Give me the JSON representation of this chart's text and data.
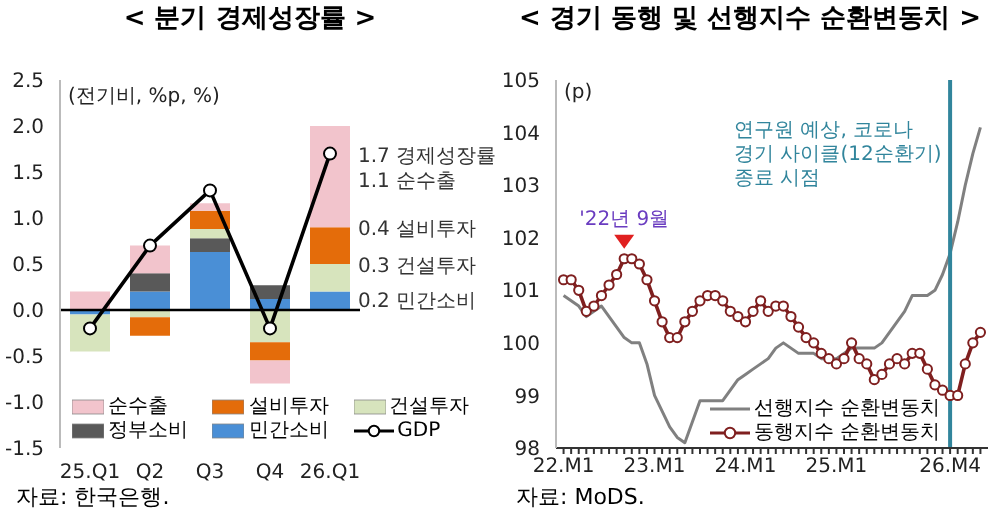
{
  "chart_data": [
    {
      "type": "bar",
      "title": "< 분기 경제성장률 >",
      "ylabel": "(전기비, %p, %)",
      "stacked": true,
      "categories": [
        "25.Q1",
        "Q2",
        "Q3",
        "Q4",
        "26.Q1"
      ],
      "series": [
        {
          "name": "민간소비",
          "color": "#4a8fd6",
          "values": [
            -0.05,
            0.2,
            0.63,
            0.12,
            0.2
          ]
        },
        {
          "name": "정부소비",
          "color": "#595959",
          "values": [
            0,
            0.2,
            0.15,
            0.15,
            0
          ]
        },
        {
          "name": "건설투자",
          "color": "#d7e4bd",
          "values": [
            -0.4,
            -0.08,
            0.1,
            -0.35,
            0.3
          ]
        },
        {
          "name": "설비투자",
          "color": "#e46c0a",
          "values": [
            0,
            -0.2,
            0.2,
            -0.2,
            0.4
          ]
        },
        {
          "name": "순수출",
          "color": "#f2c4cc",
          "values": [
            0.2,
            0.3,
            0.08,
            -0.25,
            1.1
          ]
        },
        {
          "name": "GDP",
          "type": "line",
          "color": "#000000",
          "marker": "circle",
          "values": [
            -0.2,
            0.7,
            1.3,
            -0.2,
            1.7
          ]
        }
      ],
      "ylim": [
        -1.5,
        2.5
      ],
      "yticks": [
        {
          "value": 2.5,
          "label": "2.5"
        },
        {
          "value": 2,
          "label": "2.0"
        },
        {
          "value": 1.5,
          "label": "1.5"
        },
        {
          "value": 1,
          "label": "1.0"
        },
        {
          "value": 0.5,
          "label": "0.5"
        },
        {
          "value": 0,
          "label": "0.0"
        },
        {
          "value": -0.5,
          "label": "-0.5"
        },
        {
          "value": -1,
          "label": "-1.0"
        },
        {
          "value": -1.5,
          "label": "-1.5"
        }
      ],
      "ref_lines": [
        {
          "axis": "y",
          "value": 0,
          "color": "#000000"
        }
      ],
      "legend": "bottom",
      "annotations": [
        {
          "text": "1.7 경제성장률",
          "x": "26.Q1",
          "y": 1.7
        },
        {
          "text": "1.1 순수출",
          "x": "26.Q1",
          "y": 1.42
        },
        {
          "text": "0.4 설비투자",
          "x": "26.Q1",
          "y": 0.9
        },
        {
          "text": "0.3 건설투자",
          "x": "26.Q1",
          "y": 0.5
        },
        {
          "text": "0.2 민간소비",
          "x": "26.Q1",
          "y": 0.12
        },
        "자료: 한국은행."
      ]
    },
    {
      "type": "line",
      "title": "< 경기 동행 및 선행지수 순환변동치 >",
      "ylabel": "(p)",
      "x": [
        "2022-01",
        "2022-02",
        "2022-03",
        "2022-04",
        "2022-05",
        "2022-06",
        "2022-07",
        "2022-08",
        "2022-09",
        "2022-10",
        "2022-11",
        "2022-12",
        "2023-01",
        "2023-02",
        "2023-03",
        "2023-04",
        "2023-05",
        "2023-06",
        "2023-07",
        "2023-08",
        "2023-09",
        "2023-10",
        "2023-11",
        "2023-12",
        "2024-01",
        "2024-02",
        "2024-03",
        "2024-04",
        "2024-05",
        "2024-06",
        "2024-07",
        "2024-08",
        "2024-09",
        "2024-10",
        "2024-11",
        "2024-12",
        "2025-01",
        "2025-02",
        "2025-03",
        "2025-04",
        "2025-05",
        "2025-06",
        "2025-07",
        "2025-08",
        "2025-09",
        "2025-10",
        "2025-11",
        "2025-12",
        "2026-01",
        "2026-02",
        "2026-03",
        "2026-04",
        "2026-05",
        "2026-06",
        "2026-07",
        "2026-08"
      ],
      "series": [
        {
          "name": "선행지수 순환변동치",
          "color": "#808080",
          "marker": "none",
          "values": [
            100.9,
            100.8,
            100.7,
            100.5,
            100.6,
            100.7,
            100.5,
            100.3,
            100.1,
            100.0,
            100.0,
            99.6,
            99.0,
            98.7,
            98.4,
            98.2,
            98.1,
            98.5,
            98.9,
            98.9,
            98.9,
            98.9,
            99.1,
            99.3,
            99.4,
            99.5,
            99.6,
            99.7,
            99.9,
            100.0,
            99.9,
            99.8,
            99.8,
            99.8,
            99.7,
            99.7,
            99.7,
            99.8,
            99.9,
            99.9,
            99.9,
            99.9,
            100.0,
            100.2,
            100.4,
            100.6,
            100.9,
            100.9,
            100.9,
            101.0,
            101.3,
            101.7,
            102.3,
            103.0,
            103.6,
            104.1
          ]
        },
        {
          "name": "동행지수 순환변동치",
          "color": "#7f1f1f",
          "marker": "circle",
          "values": [
            101.2,
            101.2,
            101.0,
            100.6,
            100.7,
            100.9,
            101.1,
            101.3,
            101.6,
            101.6,
            101.5,
            101.2,
            100.8,
            100.4,
            100.1,
            100.1,
            100.4,
            100.6,
            100.8,
            100.9,
            100.9,
            100.8,
            100.6,
            100.5,
            100.4,
            100.6,
            100.8,
            100.6,
            100.7,
            100.7,
            100.5,
            100.3,
            100.1,
            100.0,
            99.8,
            99.7,
            99.6,
            99.7,
            100.0,
            99.7,
            99.6,
            99.3,
            99.4,
            99.6,
            99.7,
            99.6,
            99.8,
            99.8,
            99.5,
            99.2,
            99.1,
            99.0,
            99.0,
            99.6,
            100.0,
            100.2
          ]
        }
      ],
      "xlim": [
        "2021-12",
        "2026-09"
      ],
      "xticks": [
        {
          "value": "2022-01",
          "label": "22.M1"
        },
        {
          "value": "2022-02",
          "label": null
        },
        {
          "value": "2022-03",
          "label": null
        },
        {
          "value": "2022-04",
          "label": null
        },
        {
          "value": "2022-05",
          "label": null
        },
        {
          "value": "2022-06",
          "label": null
        },
        {
          "value": "2022-07",
          "label": null
        },
        {
          "value": "2022-08",
          "label": null
        },
        {
          "value": "2022-09",
          "label": null
        },
        {
          "value": "2022-10",
          "label": null
        },
        {
          "value": "2022-11",
          "label": null
        },
        {
          "value": "2022-12",
          "label": null
        },
        {
          "value": "2023-01",
          "label": "23.M1"
        },
        {
          "value": "2023-02",
          "label": null
        },
        {
          "value": "2023-03",
          "label": null
        },
        {
          "value": "2023-04",
          "label": null
        },
        {
          "value": "2023-05",
          "label": null
        },
        {
          "value": "2023-06",
          "label": null
        },
        {
          "value": "2023-07",
          "label": null
        },
        {
          "value": "2023-08",
          "label": null
        },
        {
          "value": "2023-09",
          "label": null
        },
        {
          "value": "2023-10",
          "label": null
        },
        {
          "value": "2023-11",
          "label": null
        },
        {
          "value": "2023-12",
          "label": null
        },
        {
          "value": "2024-01",
          "label": "24.M1"
        },
        {
          "value": "2024-02",
          "label": null
        },
        {
          "value": "2024-03",
          "label": null
        },
        {
          "value": "2024-04",
          "label": null
        },
        {
          "value": "2024-05",
          "label": null
        },
        {
          "value": "2024-06",
          "label": null
        },
        {
          "value": "2024-07",
          "label": null
        },
        {
          "value": "2024-08",
          "label": null
        },
        {
          "value": "2024-09",
          "label": null
        },
        {
          "value": "2024-10",
          "label": null
        },
        {
          "value": "2024-11",
          "label": null
        },
        {
          "value": "2024-12",
          "label": null
        },
        {
          "value": "2025-01",
          "label": "25.M1"
        },
        {
          "value": "2025-02",
          "label": null
        },
        {
          "value": "2025-03",
          "label": null
        },
        {
          "value": "2025-04",
          "label": null
        },
        {
          "value": "2025-05",
          "label": null
        },
        {
          "value": "2025-06",
          "label": null
        },
        {
          "value": "2025-07",
          "label": null
        },
        {
          "value": "2025-08",
          "label": null
        },
        {
          "value": "2025-09",
          "label": null
        },
        {
          "value": "2025-10",
          "label": null
        },
        {
          "value": "2025-11",
          "label": null
        },
        {
          "value": "2025-12",
          "label": null
        },
        {
          "value": "2026-01",
          "label": null
        },
        {
          "value": "2026-02",
          "label": null
        },
        {
          "value": "2026-03",
          "label": null
        },
        {
          "value": "2026-04",
          "label": "26.M4"
        },
        {
          "value": "2026-05",
          "label": null
        },
        {
          "value": "2026-06",
          "label": null
        },
        {
          "value": "2026-07",
          "label": null
        },
        {
          "value": "2026-08",
          "label": null
        }
      ],
      "ylim": [
        98,
        105
      ],
      "yticks": [
        98,
        99,
        100,
        101,
        102,
        103,
        104,
        105
      ],
      "ref_lines": [
        {
          "axis": "x",
          "value": "2026-04",
          "label": "연구원 예상, 코로나 경기 사이클(12순환기) 종료 시점",
          "color": "#31859c"
        }
      ],
      "legend": "bottom right",
      "annotations": [
        {
          "text": "'22년 9월",
          "x": "2022-09",
          "y": 101.6
        },
        "자료: MoDS."
      ]
    }
  ]
}
